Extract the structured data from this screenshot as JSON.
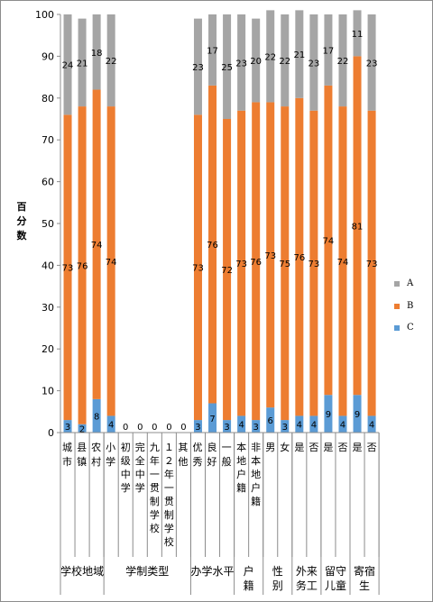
{
  "chart_data": {
    "type": "bar",
    "stacked": true,
    "percent": true,
    "ylabel": "百分数",
    "ylim": [
      0,
      100
    ],
    "yticks": [
      0,
      10,
      20,
      30,
      40,
      50,
      60,
      70,
      80,
      90,
      100
    ],
    "grid": false,
    "legend_position": "right",
    "colors": {
      "A": "#a5a5a5",
      "B": "#ed7d31",
      "C": "#5b9bd5"
    },
    "categories": [
      "城市",
      "县镇",
      "农村",
      "小学",
      "初级中学",
      "完全中学",
      "九年一贯制学校",
      "12年一贯制学校",
      "其他",
      "优秀",
      "良好",
      "一般",
      "本地户籍",
      "非本地户籍",
      "男",
      "女",
      "是",
      "否",
      "是",
      "否",
      "是",
      "否"
    ],
    "category_labels": [
      "城市",
      "县镇",
      "农村",
      "小学",
      "初级中学",
      "完全中学",
      "九年一贯制学校",
      "１２年一贯制学校",
      "其他",
      "优秀",
      "良好",
      "一般",
      "本地户籍",
      "非本地户籍",
      "男",
      "女",
      "是",
      "否",
      "是",
      "否",
      "是",
      "否"
    ],
    "groups": [
      {
        "label": "学校地域",
        "count": 3
      },
      {
        "label": "学制类型",
        "count": 6
      },
      {
        "label": "办学水平",
        "count": 3
      },
      {
        "label": "户籍",
        "count": 2
      },
      {
        "label": "性别",
        "count": 2
      },
      {
        "label": "外来务工",
        "count": 2
      },
      {
        "label": "留守儿童",
        "count": 2
      },
      {
        "label": "寄宿生",
        "count": 2
      }
    ],
    "series": [
      {
        "name": "C",
        "values": [
          3,
          2,
          8,
          4,
          0,
          0,
          0,
          0,
          0,
          3,
          7,
          3,
          4,
          3,
          6,
          3,
          4,
          4,
          9,
          4,
          9,
          4
        ]
      },
      {
        "name": "B",
        "values": [
          73,
          76,
          74,
          74,
          0,
          0,
          0,
          0,
          0,
          73,
          76,
          72,
          73,
          76,
          73,
          75,
          76,
          73,
          74,
          74,
          81,
          73
        ]
      },
      {
        "name": "A",
        "values": [
          24,
          21,
          18,
          22,
          0,
          0,
          0,
          0,
          0,
          23,
          17,
          25,
          23,
          20,
          22,
          22,
          21,
          23,
          17,
          22,
          11,
          23
        ]
      }
    ],
    "legend": [
      "A",
      "B",
      "C"
    ]
  }
}
